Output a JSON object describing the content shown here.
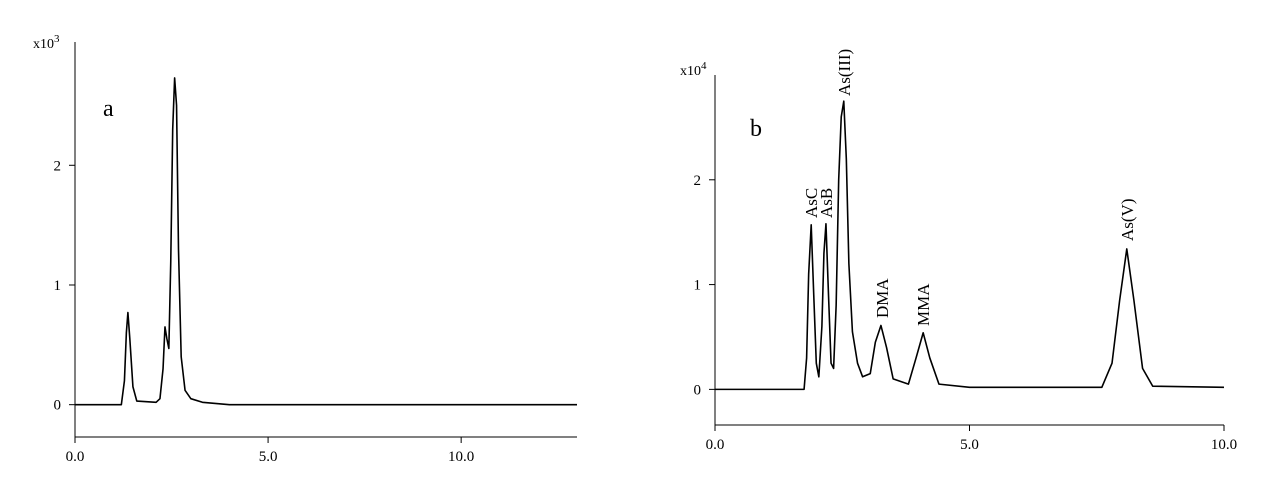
{
  "chart_data": [
    {
      "type": "line",
      "panel_label": "a",
      "y_multiplier": {
        "base": "x10",
        "exponent": "3"
      },
      "xlim": [
        0,
        13
      ],
      "ylim": [
        -0.27,
        3.03
      ],
      "xticks": [
        {
          "value": 0,
          "label": "0.0"
        },
        {
          "value": 5,
          "label": "5.0"
        },
        {
          "value": 10,
          "label": "10.0"
        }
      ],
      "yticks": [
        0,
        1,
        2
      ],
      "color": "#000000",
      "x": [
        0,
        1.2,
        1.28,
        1.33,
        1.37,
        1.42,
        1.5,
        1.6,
        2.1,
        2.2,
        2.28,
        2.33,
        2.38,
        2.43,
        2.48,
        2.53,
        2.58,
        2.63,
        2.68,
        2.75,
        2.85,
        3.0,
        3.3,
        4,
        13
      ],
      "values": [
        0,
        0,
        0.2,
        0.6,
        0.77,
        0.55,
        0.15,
        0.03,
        0.02,
        0.05,
        0.3,
        0.65,
        0.55,
        0.47,
        1.2,
        2.3,
        2.73,
        2.5,
        1.3,
        0.4,
        0.12,
        0.05,
        0.02,
        0,
        0
      ]
    },
    {
      "type": "line",
      "panel_label": "b",
      "y_multiplier": {
        "base": "x10",
        "exponent": "4"
      },
      "xlim": [
        0,
        10
      ],
      "ylim": [
        -0.34,
        3.0
      ],
      "xticks": [
        {
          "value": 0,
          "label": "0.0"
        },
        {
          "value": 5,
          "label": "5.0"
        },
        {
          "value": 10,
          "label": "10.0"
        }
      ],
      "yticks": [
        0,
        1,
        2
      ],
      "color": "#000000",
      "annotations": [
        "AsC",
        "AsB",
        "As(III)",
        "DMA",
        "MMA",
        "As(V)"
      ],
      "x": [
        0,
        1.75,
        1.8,
        1.84,
        1.89,
        1.94,
        1.99,
        2.04,
        2.1,
        2.14,
        2.18,
        2.23,
        2.28,
        2.33,
        2.38,
        2.43,
        2.48,
        2.53,
        2.58,
        2.63,
        2.7,
        2.8,
        2.9,
        3.05,
        3.15,
        3.26,
        3.37,
        3.5,
        3.8,
        3.95,
        4.09,
        4.22,
        4.4,
        5,
        7.6,
        7.8,
        7.95,
        8.09,
        8.23,
        8.4,
        8.6,
        10
      ],
      "values": [
        0,
        0,
        0.3,
        1.1,
        1.57,
        0.9,
        0.25,
        0.12,
        0.6,
        1.3,
        1.58,
        0.9,
        0.25,
        0.2,
        0.8,
        2.0,
        2.6,
        2.75,
        2.2,
        1.2,
        0.55,
        0.25,
        0.12,
        0.15,
        0.45,
        0.61,
        0.4,
        0.1,
        0.05,
        0.3,
        0.54,
        0.3,
        0.05,
        0.02,
        0.02,
        0.25,
        0.85,
        1.34,
        0.85,
        0.2,
        0.03,
        0.02
      ]
    }
  ]
}
